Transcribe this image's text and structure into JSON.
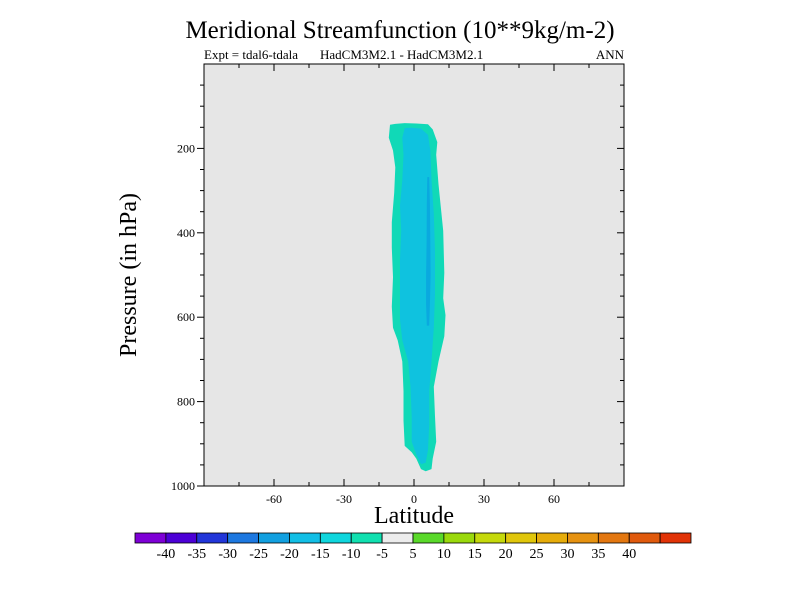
{
  "chart_data": {
    "type": "contour",
    "title": "Meridional Streamfunction (10**9kg/m-2)",
    "subtitle_left": "Expt = tdal6-tdala",
    "subtitle_center": "HadCM3M2.1 - HadCM3M2.1",
    "subtitle_right": "ANN",
    "xlabel": "Latitude",
    "ylabel": "Pressure (in hPa)",
    "xlim": [
      -90,
      90
    ],
    "ylim": [
      1000,
      0
    ],
    "x_ticks": [
      -60,
      -30,
      0,
      30,
      60
    ],
    "y_ticks": [
      200,
      400,
      600,
      800,
      1000
    ],
    "x_tick_labels": [
      "-60",
      "-30",
      "0",
      "30",
      "60"
    ],
    "y_tick_labels": [
      "200",
      "400",
      "600",
      "800",
      "1000"
    ],
    "background_color": "#e6e6e6",
    "regions": [
      {
        "name": "outer-contour-region",
        "level": "-10 to -5",
        "color": "#10d9b7",
        "outline": [
          [
            -10.3,
            144
          ],
          [
            -8,
            142
          ],
          [
            -4,
            140
          ],
          [
            1,
            141
          ],
          [
            6,
            143
          ],
          [
            8,
            155
          ],
          [
            10,
            185
          ],
          [
            9.5,
            215
          ],
          [
            10.5,
            285
          ],
          [
            12.5,
            395
          ],
          [
            13,
            495
          ],
          [
            12.5,
            555
          ],
          [
            13.5,
            595
          ],
          [
            13,
            645
          ],
          [
            10.5,
            705
          ],
          [
            8.5,
            765
          ],
          [
            9,
            835
          ],
          [
            9.5,
            895
          ],
          [
            8,
            935
          ],
          [
            7.5,
            960
          ],
          [
            5,
            965
          ],
          [
            3,
            960
          ],
          [
            1,
            935
          ],
          [
            -1,
            920
          ],
          [
            -4,
            905
          ],
          [
            -4.5,
            845
          ],
          [
            -4.5,
            775
          ],
          [
            -5,
            705
          ],
          [
            -7,
            655
          ],
          [
            -9,
            625
          ],
          [
            -9.5,
            575
          ],
          [
            -9,
            505
          ],
          [
            -9.5,
            435
          ],
          [
            -9.5,
            375
          ],
          [
            -8.5,
            305
          ],
          [
            -8,
            245
          ],
          [
            -9,
            205
          ],
          [
            -10.8,
            175
          ]
        ]
      },
      {
        "name": "middle-contour-region",
        "level": "-15 to -10",
        "color": "#0fc2df",
        "outline": [
          [
            -4,
            152
          ],
          [
            -1,
            151
          ],
          [
            3,
            153
          ],
          [
            6,
            168
          ],
          [
            7,
            205
          ],
          [
            7.5,
            275
          ],
          [
            8.5,
            355
          ],
          [
            9,
            445
          ],
          [
            9,
            545
          ],
          [
            8.5,
            625
          ],
          [
            7.5,
            705
          ],
          [
            6.5,
            775
          ],
          [
            6.5,
            855
          ],
          [
            6,
            915
          ],
          [
            5,
            945
          ],
          [
            3,
            948
          ],
          [
            1,
            925
          ],
          [
            -1,
            895
          ],
          [
            -1,
            835
          ],
          [
            -1.5,
            765
          ],
          [
            -2.5,
            705
          ],
          [
            -5,
            655
          ],
          [
            -6,
            605
          ],
          [
            -6,
            535
          ],
          [
            -6,
            465
          ],
          [
            -5.5,
            395
          ],
          [
            -6,
            335
          ],
          [
            -5,
            275
          ],
          [
            -4.5,
            215
          ],
          [
            -5,
            175
          ]
        ]
      },
      {
        "name": "inner-contour-region",
        "level": "-20 to -15",
        "color": "#0aa9df",
        "outline": [
          [
            5.7,
            268
          ],
          [
            6.5,
            268
          ],
          [
            6.8,
            330
          ],
          [
            7,
            420
          ],
          [
            7.1,
            500
          ],
          [
            6.8,
            570
          ],
          [
            6.5,
            620
          ],
          [
            5.5,
            620
          ],
          [
            5.2,
            570
          ],
          [
            5.2,
            500
          ],
          [
            5.4,
            420
          ],
          [
            5.5,
            330
          ]
        ]
      }
    ],
    "colorbar": {
      "colors": [
        "#7e00d6",
        "#4c00d6",
        "#2236d9",
        "#1d78e0",
        "#12a0e0",
        "#12bfe6",
        "#0fd6dd",
        "#10e0b0",
        "#ececec",
        "#5ad92a",
        "#9ad90c",
        "#c5d90b",
        "#e0c60b",
        "#e6ac0a",
        "#e69210",
        "#e37710",
        "#e05a0d",
        "#e13307"
      ],
      "labels": [
        "-40",
        "-35",
        "-30",
        "-25",
        "-20",
        "-15",
        "-10",
        "-5",
        "5",
        "10",
        "15",
        "20",
        "25",
        "30",
        "35",
        "40"
      ]
    }
  }
}
